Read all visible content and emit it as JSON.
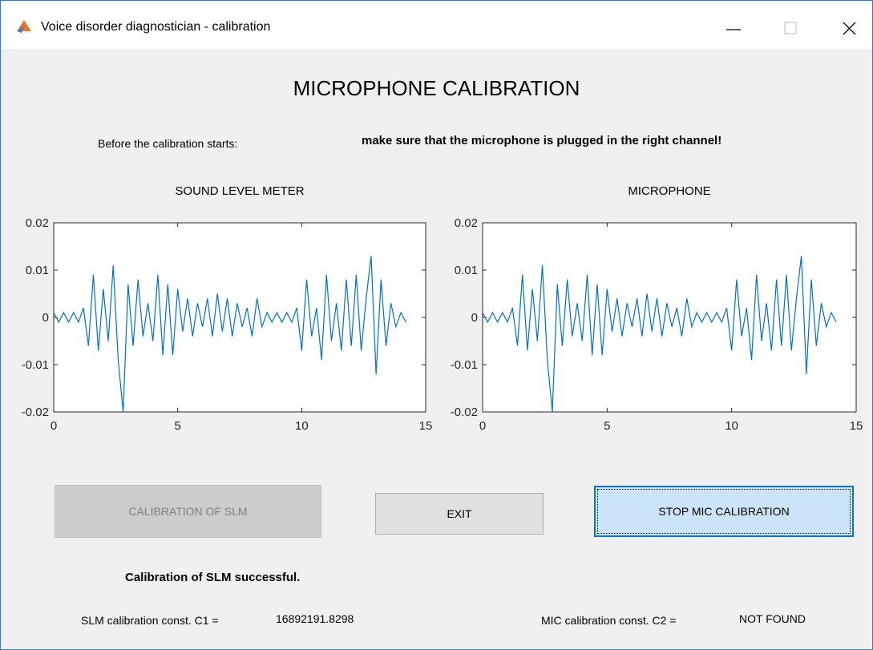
{
  "window": {
    "title": "Voice disorder diagnostician - calibration"
  },
  "heading": "MICROPHONE CALIBRATION",
  "instruction": {
    "label": "Before the calibration starts:",
    "warning": "make sure that the microphone is plugged in the right channel!"
  },
  "chart_data": [
    {
      "type": "line",
      "title": "SOUND LEVEL METER",
      "color": "#0072bd",
      "x": [
        0,
        0.2,
        0.4,
        0.6,
        0.8,
        1,
        1.2,
        1.4,
        1.6,
        1.8,
        2,
        2.2,
        2.4,
        2.6,
        2.8,
        3,
        3.2,
        3.4,
        3.6,
        3.8,
        4,
        4.2,
        4.4,
        4.6,
        4.8,
        5,
        5.2,
        5.4,
        5.6,
        5.8,
        6,
        6.2,
        6.4,
        6.6,
        6.8,
        7,
        7.2,
        7.4,
        7.6,
        7.8,
        8,
        8.2,
        8.4,
        8.6,
        8.8,
        9,
        9.2,
        9.4,
        9.6,
        9.8,
        10,
        10.2,
        10.4,
        10.6,
        10.8,
        11,
        11.2,
        11.4,
        11.6,
        11.8,
        12,
        12.2,
        12.4,
        12.6,
        12.8,
        13,
        13.2,
        13.4,
        13.6,
        13.8,
        14,
        14.2
      ],
      "values": [
        0.001,
        -0.001,
        0.001,
        -0.001,
        0.001,
        -0.001,
        0.002,
        -0.006,
        0.009,
        -0.007,
        0.006,
        -0.005,
        0.011,
        -0.009,
        -0.02,
        0.007,
        -0.006,
        0.008,
        -0.004,
        0.003,
        -0.005,
        0.009,
        -0.008,
        0.007,
        -0.008,
        0.006,
        -0.003,
        0.004,
        -0.004,
        0.003,
        -0.002,
        0.004,
        -0.004,
        0.005,
        -0.003,
        0.004,
        -0.004,
        0.003,
        -0.002,
        0.002,
        -0.004,
        0.004,
        -0.002,
        0.001,
        -0.001,
        0.001,
        -0.001,
        0.001,
        -0.001,
        0.002,
        -0.007,
        0.008,
        -0.004,
        0.002,
        -0.009,
        0.009,
        -0.005,
        0.003,
        -0.007,
        0.008,
        -0.006,
        0.009,
        -0.007,
        0.004,
        0.013,
        -0.012,
        0.008,
        -0.006,
        0.003,
        -0.002,
        0.001,
        -0.001
      ],
      "xlim": [
        0,
        15
      ],
      "xticks": [
        0,
        5,
        10,
        15
      ],
      "ylim": [
        -0.02,
        0.02
      ],
      "yticks": [
        -0.02,
        -0.01,
        0,
        0.01,
        0.02
      ]
    },
    {
      "type": "line",
      "title": "MICROPHONE",
      "color": "#0072bd",
      "x": [
        0,
        0.2,
        0.4,
        0.6,
        0.8,
        1,
        1.2,
        1.4,
        1.6,
        1.8,
        2,
        2.2,
        2.4,
        2.6,
        2.8,
        3,
        3.2,
        3.4,
        3.6,
        3.8,
        4,
        4.2,
        4.4,
        4.6,
        4.8,
        5,
        5.2,
        5.4,
        5.6,
        5.8,
        6,
        6.2,
        6.4,
        6.6,
        6.8,
        7,
        7.2,
        7.4,
        7.6,
        7.8,
        8,
        8.2,
        8.4,
        8.6,
        8.8,
        9,
        9.2,
        9.4,
        9.6,
        9.8,
        10,
        10.2,
        10.4,
        10.6,
        10.8,
        11,
        11.2,
        11.4,
        11.6,
        11.8,
        12,
        12.2,
        12.4,
        12.6,
        12.8,
        13,
        13.2,
        13.4,
        13.6,
        13.8,
        14,
        14.2
      ],
      "values": [
        0.001,
        -0.001,
        0.001,
        -0.001,
        0.001,
        -0.001,
        0.002,
        -0.006,
        0.009,
        -0.007,
        0.006,
        -0.005,
        0.011,
        -0.009,
        -0.02,
        0.007,
        -0.006,
        0.008,
        -0.004,
        0.003,
        -0.005,
        0.009,
        -0.008,
        0.007,
        -0.008,
        0.006,
        -0.003,
        0.004,
        -0.004,
        0.003,
        -0.002,
        0.004,
        -0.004,
        0.005,
        -0.003,
        0.004,
        -0.004,
        0.003,
        -0.002,
        0.002,
        -0.004,
        0.004,
        -0.002,
        0.001,
        -0.001,
        0.001,
        -0.001,
        0.001,
        -0.001,
        0.002,
        -0.007,
        0.008,
        -0.004,
        0.002,
        -0.009,
        0.009,
        -0.005,
        0.003,
        -0.007,
        0.008,
        -0.006,
        0.009,
        -0.007,
        0.004,
        0.013,
        -0.012,
        0.008,
        -0.006,
        0.003,
        -0.002,
        0.001,
        -0.001
      ],
      "xlim": [
        0,
        15
      ],
      "xticks": [
        0,
        5,
        10,
        15
      ],
      "ylim": [
        -0.02,
        0.02
      ],
      "yticks": [
        -0.02,
        -0.01,
        0,
        0.01,
        0.02
      ]
    }
  ],
  "buttons": [
    "CALIBRATION OF SLM",
    "EXIT",
    "STOP MIC CALIBRATION"
  ],
  "status": "Calibration of SLM successful.",
  "constants": [
    {
      "label": "SLM calibration const. C1 =",
      "value": "16892191.8298"
    },
    {
      "label": "MIC calibration const. C2 =",
      "value": "NOT FOUND"
    }
  ]
}
